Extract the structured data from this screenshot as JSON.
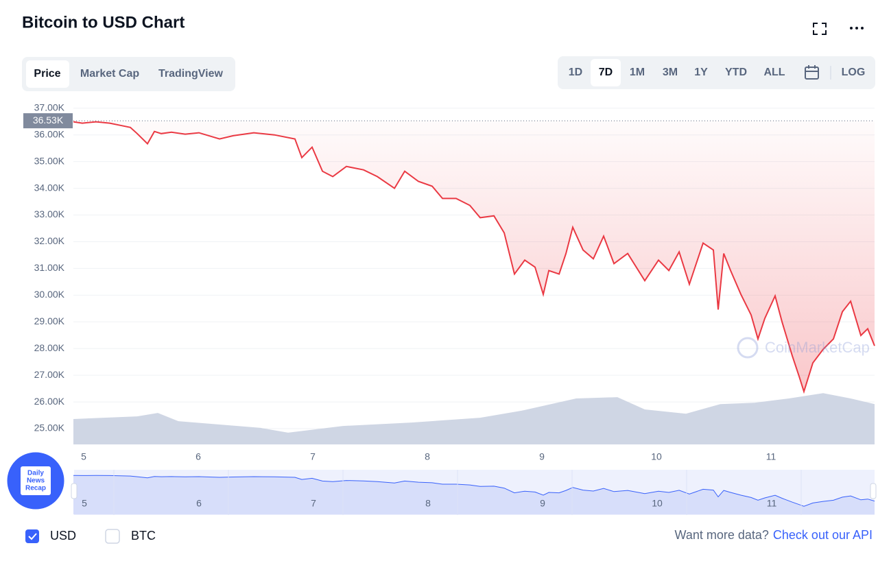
{
  "header": {
    "title": "Bitcoin to USD Chart"
  },
  "tabs": [
    "Price",
    "Market Cap",
    "TradingView"
  ],
  "ranges": [
    "1D",
    "7D",
    "1M",
    "3M",
    "1Y",
    "YTD",
    "ALL"
  ],
  "log_button": "LOG",
  "currencies": [
    "USD",
    "BTC"
  ],
  "api_prompt": "Want more data?",
  "api_link": "Check out our API",
  "badge": [
    "Daily",
    "News",
    "Recap"
  ],
  "chart_data": {
    "type": "line",
    "watermark": "CoinMarketCap",
    "color": "#ea3943",
    "xlim": [
      4.91,
      11.904
    ],
    "xticks": [
      5,
      6,
      7,
      8,
      9,
      10,
      11
    ],
    "ylim": [
      24410,
      37200
    ],
    "yticks": [
      {
        "value": 37000,
        "label": "37.00K"
      },
      {
        "value": 36000,
        "label": "36.00K"
      },
      {
        "value": 35000,
        "label": "35.00K"
      },
      {
        "value": 34000,
        "label": "34.00K"
      },
      {
        "value": 33000,
        "label": "33.00K"
      },
      {
        "value": 32000,
        "label": "32.00K"
      },
      {
        "value": 31000,
        "label": "31.00K"
      },
      {
        "value": 30000,
        "label": "30.00K"
      },
      {
        "value": 29000,
        "label": "29.00K"
      },
      {
        "value": 28000,
        "label": "28.00K"
      },
      {
        "value": 27000,
        "label": "27.00K"
      },
      {
        "value": 26000,
        "label": "26.00K"
      },
      {
        "value": 25000,
        "label": "25.00K"
      }
    ],
    "grid": true,
    "current_price": {
      "value": 36530,
      "label": "36.53K"
    },
    "x": [
      4.91,
      4.988,
      5.108,
      5.228,
      5.317,
      5.407,
      5.467,
      5.557,
      5.617,
      5.677,
      5.766,
      5.886,
      6.006,
      6.186,
      6.305,
      6.485,
      6.665,
      6.844,
      6.904,
      6.994,
      7.084,
      7.174,
      7.293,
      7.443,
      7.563,
      7.713,
      7.802,
      7.922,
      8.042,
      8.132,
      8.251,
      8.371,
      8.461,
      8.581,
      8.671,
      8.76,
      8.85,
      8.94,
      9.012,
      9.06,
      9.15,
      9.21,
      9.269,
      9.359,
      9.449,
      9.539,
      9.629,
      9.749,
      9.898,
      10.018,
      10.108,
      10.198,
      10.287,
      10.407,
      10.497,
      10.539,
      10.587,
      10.647,
      10.737,
      10.826,
      10.886,
      10.946,
      11.036,
      11.096,
      11.186,
      11.246,
      11.287,
      11.365,
      11.455,
      11.545,
      11.623,
      11.695,
      11.784,
      11.844,
      11.904
    ],
    "values": [
      36490,
      36440,
      36490,
      36440,
      36360,
      36280,
      36050,
      35670,
      36130,
      36050,
      36100,
      36030,
      36080,
      35850,
      35970,
      36080,
      36000,
      35850,
      35150,
      35540,
      34640,
      34440,
      34820,
      34690,
      34440,
      34000,
      34640,
      34260,
      34080,
      33620,
      33620,
      33360,
      32900,
      32970,
      32330,
      30790,
      31310,
      31050,
      30030,
      30920,
      30790,
      31560,
      32540,
      31690,
      31360,
      32210,
      31180,
      31560,
      30540,
      31310,
      30920,
      31620,
      30410,
      31950,
      31690,
      29460,
      31560,
      30920,
      30030,
      29260,
      28360,
      29130,
      29970,
      29000,
      27720,
      26950,
      26390,
      27460,
      27970,
      28360,
      29380,
      29770,
      28490,
      28740,
      28100
    ],
    "volume": {
      "color": "#cfd6e4",
      "x": [
        4.91,
        5.467,
        5.647,
        5.826,
        6.545,
        6.784,
        7.263,
        7.862,
        8.461,
        8.82,
        9.299,
        9.659,
        9.898,
        10.257,
        10.557,
        10.856,
        11.156,
        11.455,
        11.695,
        11.904
      ],
      "values": [
        25360,
        25460,
        25590,
        25280,
        25030,
        24850,
        25100,
        25230,
        25410,
        25670,
        26130,
        26180,
        25720,
        25560,
        25920,
        25970,
        26130,
        26330,
        26130,
        25920
      ]
    }
  }
}
